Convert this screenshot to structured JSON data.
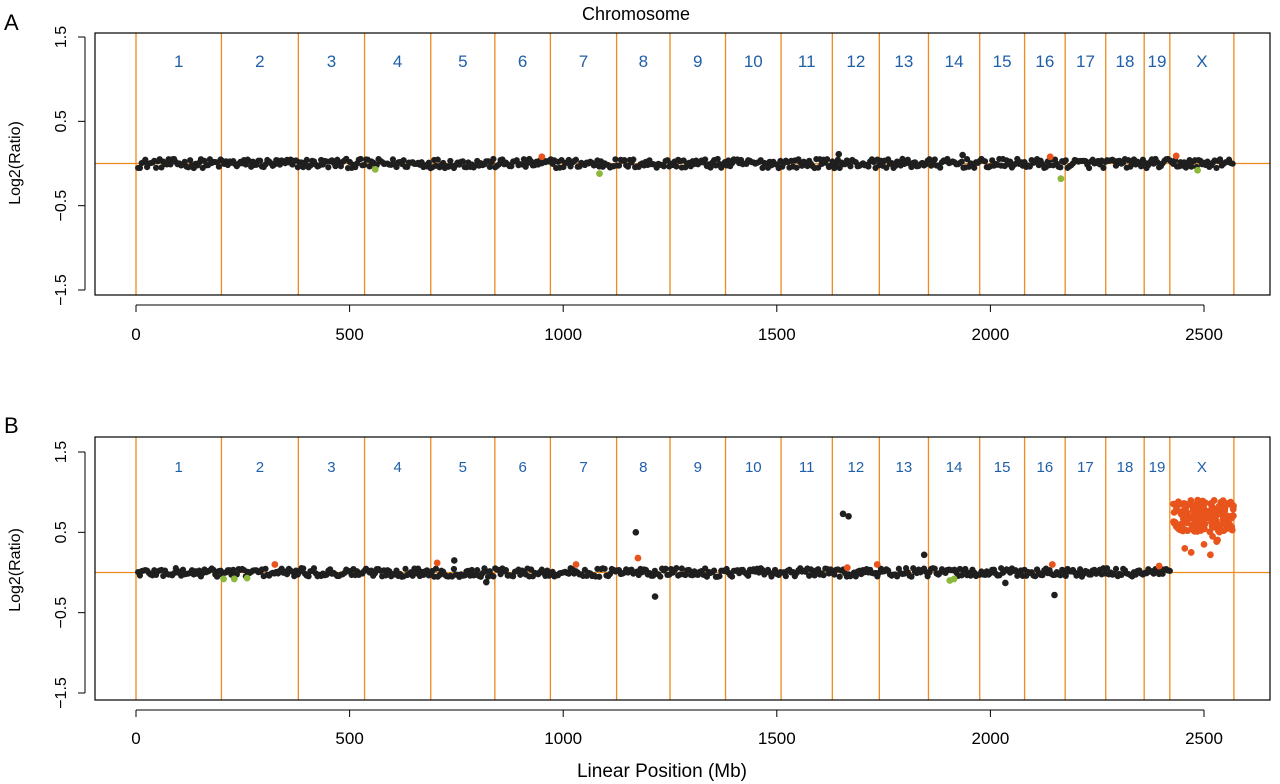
{
  "figure": {
    "top_label": "Chromosome",
    "bottom_label": "Linear Position (Mb)"
  },
  "colors": {
    "points": "#1f1f1f",
    "gain": "#e8541c",
    "loss": "#8cb83c",
    "boundary": "#ee8a1e",
    "chromosome_label": "#1f5fa8",
    "axis": "#000000"
  },
  "chart_data": [
    {
      "panel_label": "A",
      "type": "scatter",
      "ylabel": "Log2(Ratio)",
      "xlim": [
        0,
        2570
      ],
      "ylim": [
        -1.5,
        1.5
      ],
      "x_ticks": [
        0,
        500,
        1000,
        1500,
        2000,
        2500
      ],
      "y_ticks": [
        1.5,
        0.5,
        -0.5,
        -1.5
      ],
      "reference_line": 0,
      "chromosome_boundaries": [
        0,
        200,
        380,
        535,
        690,
        840,
        970,
        1125,
        1250,
        1380,
        1510,
        1630,
        1740,
        1855,
        1975,
        2080,
        2175,
        2270,
        2360,
        2420,
        2570
      ],
      "chromosome_labels": [
        "1",
        "2",
        "3",
        "4",
        "5",
        "6",
        "7",
        "8",
        "9",
        "10",
        "11",
        "12",
        "13",
        "14",
        "15",
        "16",
        "17",
        "18",
        "19",
        "X"
      ],
      "gain_points": [
        [
          950,
          0.08
        ],
        [
          2140,
          0.08
        ],
        [
          2435,
          0.09
        ]
      ],
      "loss_points": [
        [
          560,
          -0.07
        ],
        [
          1085,
          -0.12
        ],
        [
          2165,
          -0.18
        ],
        [
          2485,
          -0.08
        ]
      ],
      "outlier_points": [
        [
          1645,
          0.11
        ],
        [
          1935,
          0.1
        ]
      ],
      "x_elevated_ranges": []
    },
    {
      "panel_label": "B",
      "type": "scatter",
      "ylabel": "Log2(Ratio)",
      "xlim": [
        0,
        2570
      ],
      "ylim": [
        -1.5,
        1.5
      ],
      "x_ticks": [
        0,
        500,
        1000,
        1500,
        2000,
        2500
      ],
      "y_ticks": [
        1.5,
        0.5,
        -0.5,
        -1.5
      ],
      "reference_line": 0,
      "chromosome_boundaries": [
        0,
        200,
        380,
        535,
        690,
        840,
        970,
        1125,
        1250,
        1380,
        1510,
        1630,
        1740,
        1855,
        1975,
        2080,
        2175,
        2270,
        2360,
        2420,
        2570
      ],
      "chromosome_labels": [
        "1",
        "2",
        "3",
        "4",
        "5",
        "6",
        "7",
        "8",
        "9",
        "10",
        "11",
        "12",
        "13",
        "14",
        "15",
        "16",
        "17",
        "18",
        "19",
        "X"
      ],
      "gain_points": [
        [
          325,
          0.1
        ],
        [
          705,
          0.12
        ],
        [
          1030,
          0.1
        ],
        [
          1175,
          0.18
        ],
        [
          1665,
          0.06
        ],
        [
          1735,
          0.1
        ],
        [
          2145,
          0.1
        ],
        [
          2395,
          0.08
        ],
        [
          2445,
          0.75
        ],
        [
          2460,
          0.62
        ],
        [
          2475,
          0.8
        ],
        [
          2490,
          0.55
        ],
        [
          2505,
          0.7
        ],
        [
          2520,
          0.45
        ],
        [
          2535,
          0.78
        ],
        [
          2550,
          0.6
        ],
        [
          2455,
          0.3
        ],
        [
          2470,
          0.25
        ],
        [
          2500,
          0.35
        ],
        [
          2515,
          0.22
        ],
        [
          2530,
          0.4
        ],
        [
          2545,
          0.52
        ],
        [
          2560,
          0.85
        ],
        [
          2440,
          0.88
        ],
        [
          2485,
          0.9
        ]
      ],
      "loss_points": [
        [
          205,
          -0.08
        ],
        [
          230,
          -0.08
        ],
        [
          260,
          -0.07
        ],
        [
          1905,
          -0.1
        ],
        [
          1915,
          -0.08
        ]
      ],
      "outlier_points": [
        [
          1170,
          0.5
        ],
        [
          1215,
          -0.3
        ],
        [
          1655,
          0.73
        ],
        [
          1668,
          0.7
        ],
        [
          1845,
          0.22
        ],
        [
          2150,
          -0.28
        ],
        [
          820,
          -0.12
        ],
        [
          2035,
          -0.13
        ],
        [
          745,
          0.15
        ]
      ],
      "x_elevated_ranges": [
        [
          2425,
          2570,
          0.2,
          0.9
        ]
      ]
    }
  ]
}
